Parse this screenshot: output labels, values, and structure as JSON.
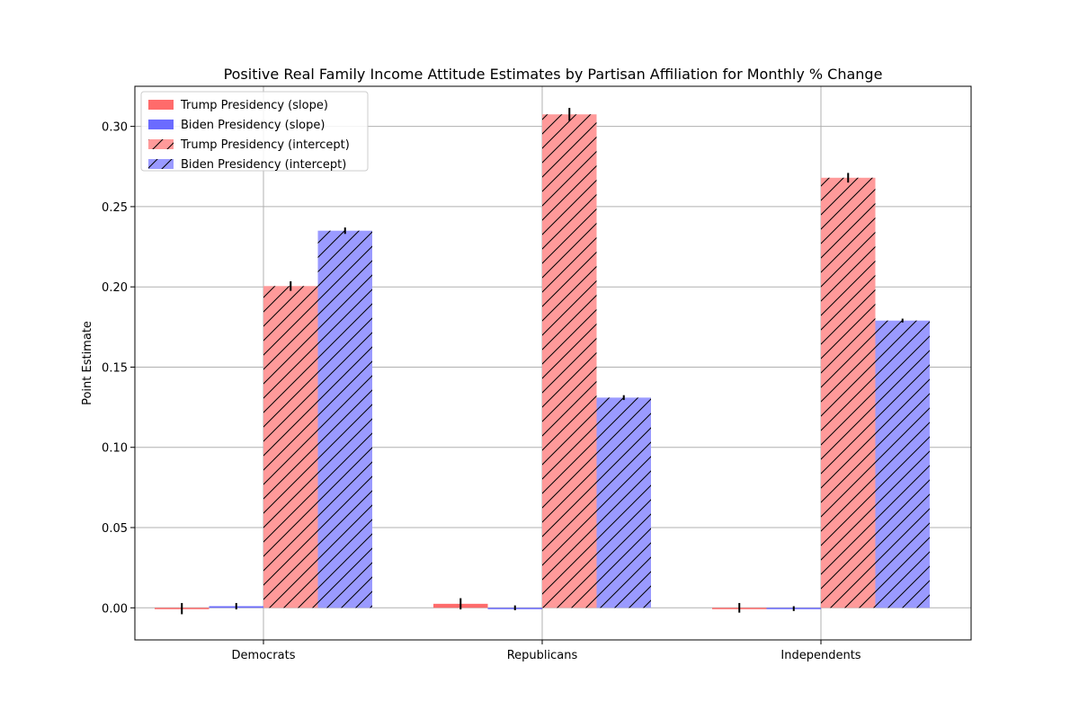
{
  "chart_data": {
    "type": "bar",
    "title": "Positive Real Family Income Attitude Estimates by Partisan Affiliation for Monthly % Change",
    "xlabel": "",
    "ylabel": "Point Estimate",
    "categories": [
      "Democrats",
      "Republicans",
      "Independents"
    ],
    "ylim": [
      -0.02,
      0.325
    ],
    "yticks": [
      0.0,
      0.05,
      0.1,
      0.15,
      0.2,
      0.25,
      0.3
    ],
    "ytick_labels": [
      "0.00",
      "0.05",
      "0.10",
      "0.15",
      "0.20",
      "0.25",
      "0.30"
    ],
    "grid": true,
    "legend_position": "top-left",
    "series": [
      {
        "name": "Trump Presidency (slope)",
        "values": [
          -0.0005,
          0.0025,
          0.0
        ],
        "errors": [
          0.0035,
          0.0035,
          0.003
        ],
        "color": "#ff6b6b",
        "hatch": false
      },
      {
        "name": "Biden Presidency (slope)",
        "values": [
          0.001,
          0.0,
          -0.0005
        ],
        "errors": [
          0.002,
          0.0015,
          0.0015
        ],
        "color": "#6b6bff",
        "hatch": false
      },
      {
        "name": "Trump Presidency (intercept)",
        "values": [
          0.2005,
          0.3075,
          0.268
        ],
        "errors": [
          0.003,
          0.004,
          0.003
        ],
        "color": "#ff9a9a",
        "hatch": true
      },
      {
        "name": "Biden Presidency (intercept)",
        "values": [
          0.235,
          0.131,
          0.179
        ],
        "errors": [
          0.002,
          0.0015,
          0.0012
        ],
        "color": "#9a9aff",
        "hatch": true
      }
    ]
  }
}
